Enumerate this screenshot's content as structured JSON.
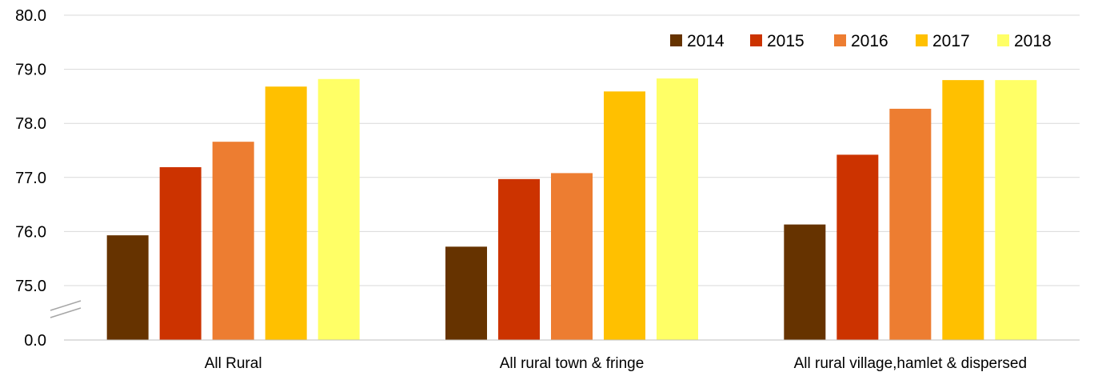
{
  "chart_data": {
    "type": "bar",
    "categories": [
      "All Rural",
      "All rural town & fringe",
      "All rural village,hamlet & dispersed"
    ],
    "series": [
      {
        "name": "2014",
        "color": "#663300",
        "values": [
          75.93,
          75.72,
          76.13
        ]
      },
      {
        "name": "2015",
        "color": "#cc3300",
        "values": [
          77.19,
          76.97,
          77.42
        ]
      },
      {
        "name": "2016",
        "color": "#ed7d31",
        "values": [
          77.66,
          77.08,
          78.27
        ]
      },
      {
        "name": "2017",
        "color": "#ffc000",
        "values": [
          78.68,
          78.59,
          78.8
        ]
      },
      {
        "name": "2018",
        "color": "#ffff66",
        "values": [
          78.82,
          78.83,
          78.8
        ]
      }
    ],
    "y_ticks": [
      "0.0",
      "75.0",
      "76.0",
      "77.0",
      "78.0",
      "79.0",
      "80.0"
    ],
    "ylim": [
      75,
      80
    ],
    "axis_break": true,
    "grid": true,
    "legend_position": "top-right"
  }
}
